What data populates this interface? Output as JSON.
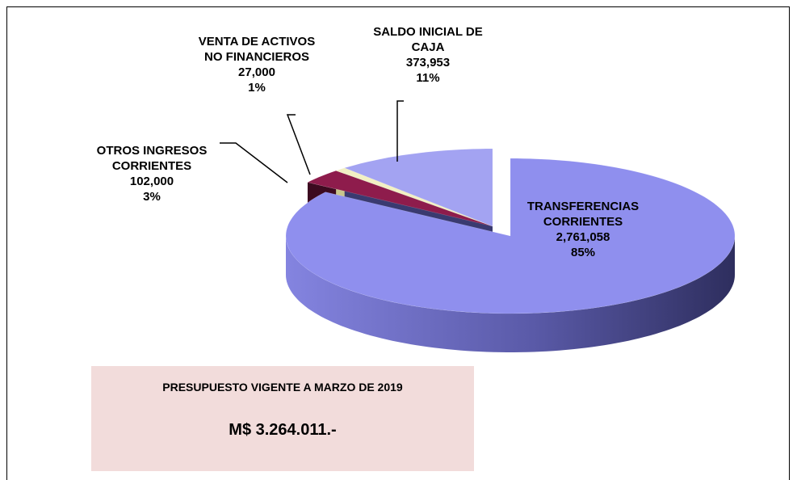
{
  "chart_data": {
    "type": "pie",
    "categories": [
      "TRANSFERENCIAS CORRIENTES",
      "OTROS INGRESOS CORRIENTES",
      "VENTA DE ACTIVOS NO FINANCIEROS",
      "SALDO INICIAL DE CAJA"
    ],
    "values": [
      2761058,
      102000,
      27000,
      373953
    ],
    "value_labels": [
      "2,761,058",
      "102,000",
      "27,000",
      "373,953"
    ],
    "percent_labels": [
      "85%",
      "3%",
      "1%",
      "11%"
    ],
    "colors": [
      "#8f8fee",
      "#8e1c4c",
      "#f2f0c4",
      "#a3a3f2"
    ],
    "box_title": "PRESUPUESTO VIGENTE A  MARZO DE 2019",
    "box_value": "M$ 3.264.011.-"
  }
}
